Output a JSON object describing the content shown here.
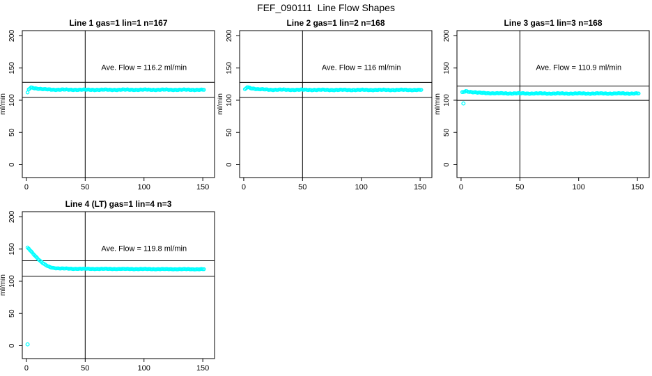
{
  "figure": {
    "title": "FEF_090111  Line Flow Shapes"
  },
  "colors": {
    "points": "#00FFFF",
    "axis": "#000000",
    "text": "#000000",
    "background": "#FFFFFF"
  },
  "axes": {
    "ylabel": "ml/min",
    "x_ticks": [
      0,
      50,
      100,
      150
    ],
    "y_ticks": [
      0,
      50,
      100,
      150,
      200
    ],
    "xlim": [
      -3.5,
      160
    ],
    "ylim": [
      -20,
      208
    ],
    "vline_x": 50
  },
  "chart_data": [
    {
      "type": "scatter",
      "panel": 1,
      "title": "Line 1 gas=1 lin=1 n=167",
      "n": 167,
      "ave_flow_ml_min": 116.2,
      "annotation": "Ave. Flow =  116.2  ml/min",
      "annotation_pos": [
        100,
        147
      ],
      "hline_upper": 127.8,
      "hline_lower": 104.6,
      "vline_x": 50,
      "x_range": [
        1,
        151
      ],
      "profile_keypoints": [
        [
          1,
          111.5
        ],
        [
          2,
          117
        ],
        [
          4,
          120
        ],
        [
          8,
          118.5
        ],
        [
          14,
          117
        ],
        [
          25,
          116.4
        ],
        [
          60,
          116.2
        ],
        [
          100,
          116.3
        ],
        [
          151,
          116.2
        ]
      ],
      "outlier_points": [],
      "jitter": 0.7
    },
    {
      "type": "scatter",
      "panel": 2,
      "title": "Line 2 gas=1 lin=2 n=168",
      "n": 168,
      "ave_flow_ml_min": 116,
      "annotation": "Ave. Flow =  116  ml/min",
      "annotation_pos": [
        100,
        147
      ],
      "hline_upper": 127.6,
      "hline_lower": 104.4,
      "vline_x": 50,
      "x_range": [
        1,
        151
      ],
      "profile_keypoints": [
        [
          1,
          116.5
        ],
        [
          3,
          120.5
        ],
        [
          6,
          119
        ],
        [
          12,
          117
        ],
        [
          25,
          116.3
        ],
        [
          80,
          116
        ],
        [
          151,
          116
        ]
      ],
      "outlier_points": [],
      "jitter": 0.7
    },
    {
      "type": "scatter",
      "panel": 3,
      "title": "Line 3 gas=1 lin=3 n=168",
      "n": 168,
      "ave_flow_ml_min": 110.9,
      "annotation": "Ave. Flow =  110.9  ml/min",
      "annotation_pos": [
        100,
        147
      ],
      "hline_upper": 122.0,
      "hline_lower": 99.8,
      "vline_x": 50,
      "x_range": [
        1,
        151
      ],
      "profile_keypoints": [
        [
          1,
          112
        ],
        [
          4,
          114.2
        ],
        [
          8,
          113
        ],
        [
          15,
          111.5
        ],
        [
          30,
          110.7
        ],
        [
          80,
          110.4
        ],
        [
          151,
          110.5
        ]
      ],
      "outlier_points": [
        [
          2,
          95
        ]
      ],
      "jitter": 0.7
    },
    {
      "type": "scatter",
      "panel": 4,
      "title": "Line 4 (LT) gas=1 lin=4 n=3",
      "n": 3,
      "ave_flow_ml_min": 119.8,
      "annotation": "Ave. Flow =  119.8  ml/min",
      "annotation_pos": [
        100,
        147
      ],
      "hline_upper": 131.8,
      "hline_lower": 107.8,
      "vline_x": 50,
      "x_range": [
        1,
        151
      ],
      "profile_keypoints": [
        [
          1,
          152
        ],
        [
          2,
          150.5
        ],
        [
          3,
          148.5
        ],
        [
          4,
          146.5
        ],
        [
          5,
          144.5
        ],
        [
          6,
          142.5
        ],
        [
          7,
          140.5
        ],
        [
          8,
          138.5
        ],
        [
          10,
          134.5
        ],
        [
          12,
          131
        ],
        [
          14,
          128
        ],
        [
          16,
          125.5
        ],
        [
          18,
          123.5
        ],
        [
          20,
          122
        ],
        [
          23,
          120.8
        ],
        [
          26,
          120.2
        ],
        [
          30,
          119.8
        ],
        [
          40,
          119.4
        ],
        [
          60,
          119.2
        ],
        [
          90,
          119
        ],
        [
          120,
          118.8
        ],
        [
          151,
          118.7
        ]
      ],
      "outlier_points": [
        [
          1,
          2
        ]
      ],
      "jitter": 0.45
    }
  ]
}
